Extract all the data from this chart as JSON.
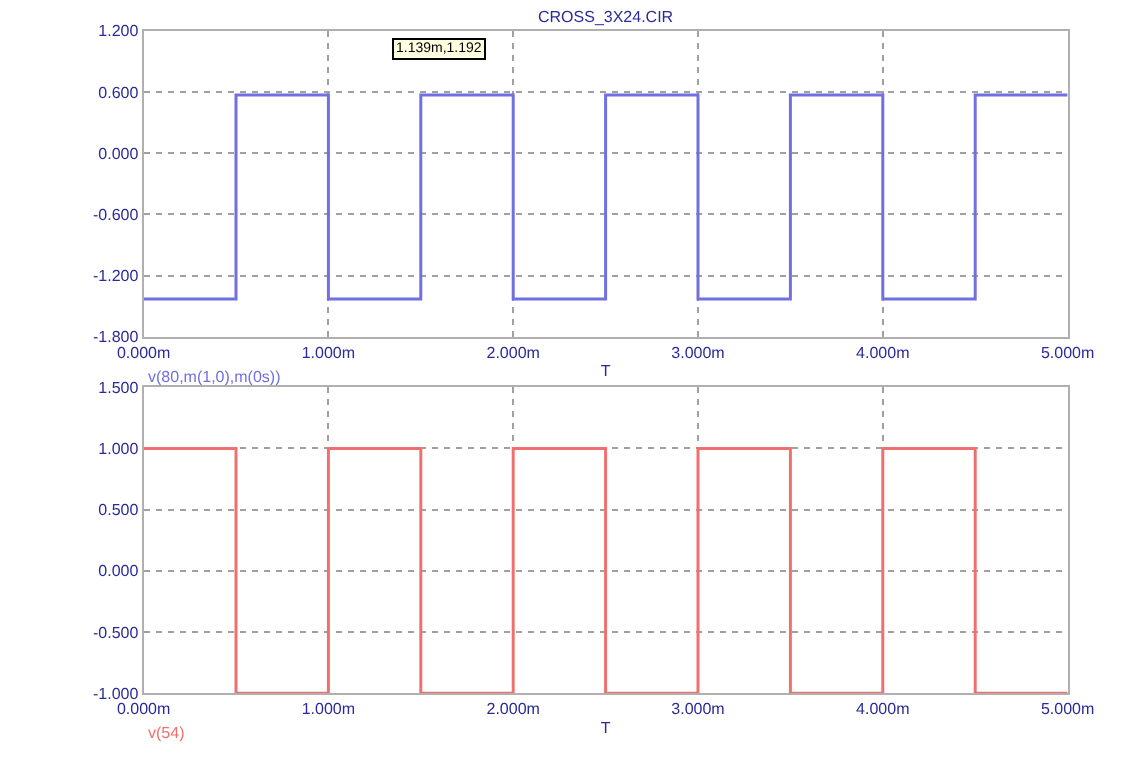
{
  "chart_data": [
    {
      "type": "step",
      "title": "CROSS_3X24.CIR",
      "xlabel": "T",
      "annotations": [
        "1.139m,1.192"
      ],
      "x": [
        0,
        0.5,
        1.0,
        1.5,
        2.0,
        2.5,
        3.0,
        3.5,
        4.0,
        4.5,
        5.0
      ],
      "series": [
        {
          "name": "v(80,m(1,0),m(0s))",
          "color": "#7070e0",
          "values": [
            -1.43,
            0.57,
            -1.43,
            0.57,
            -1.43,
            0.57,
            -1.43,
            0.57,
            -1.43,
            0.57,
            0.57
          ]
        }
      ],
      "xlim": [
        0,
        5
      ],
      "xticks": [
        {
          "value": 0,
          "label": "0.000m"
        },
        {
          "value": 1,
          "label": "1.000m"
        },
        {
          "value": 2,
          "label": "2.000m"
        },
        {
          "value": 3,
          "label": "3.000m"
        },
        {
          "value": 4,
          "label": "4.000m"
        },
        {
          "value": 5,
          "label": "5.000m"
        }
      ],
      "ylim": [
        -1.8,
        1.2
      ],
      "yticks": [
        {
          "value": -1.8,
          "label": "-1.800"
        },
        {
          "value": -1.2,
          "label": "-1.200"
        },
        {
          "value": -0.6,
          "label": "-0.600"
        },
        {
          "value": 0,
          "label": "0.000"
        },
        {
          "value": 0.6,
          "label": "0.600"
        },
        {
          "value": 1.2,
          "label": "1.200"
        }
      ],
      "grid": true,
      "line_style": "solid"
    },
    {
      "type": "step",
      "xlabel": "T",
      "x": [
        0,
        0.5,
        1.0,
        1.5,
        2.0,
        2.5,
        3.0,
        3.5,
        4.0,
        4.5,
        5.0
      ],
      "series": [
        {
          "name": "v(54)",
          "color": "#f07070",
          "values": [
            1.0,
            -1.0,
            1.0,
            -1.0,
            1.0,
            -1.0,
            1.0,
            -1.0,
            1.0,
            -1.0,
            -1.0
          ]
        }
      ],
      "xlim": [
        0,
        5
      ],
      "xticks": [
        {
          "value": 0,
          "label": "0.000m"
        },
        {
          "value": 1,
          "label": "1.000m"
        },
        {
          "value": 2,
          "label": "2.000m"
        },
        {
          "value": 3,
          "label": "3.000m"
        },
        {
          "value": 4,
          "label": "4.000m"
        },
        {
          "value": 5,
          "label": "5.000m"
        }
      ],
      "ylim": [
        -1.0,
        1.5
      ],
      "yticks": [
        {
          "value": -1.0,
          "label": "-1.000"
        },
        {
          "value": -0.5,
          "label": "-0.500"
        },
        {
          "value": 0,
          "label": "0.000"
        },
        {
          "value": 0.5,
          "label": "0.500"
        },
        {
          "value": 1.0,
          "label": "1.000"
        },
        {
          "value": 1.5,
          "label": "1.500"
        }
      ],
      "grid": true,
      "line_style": "solid"
    }
  ]
}
